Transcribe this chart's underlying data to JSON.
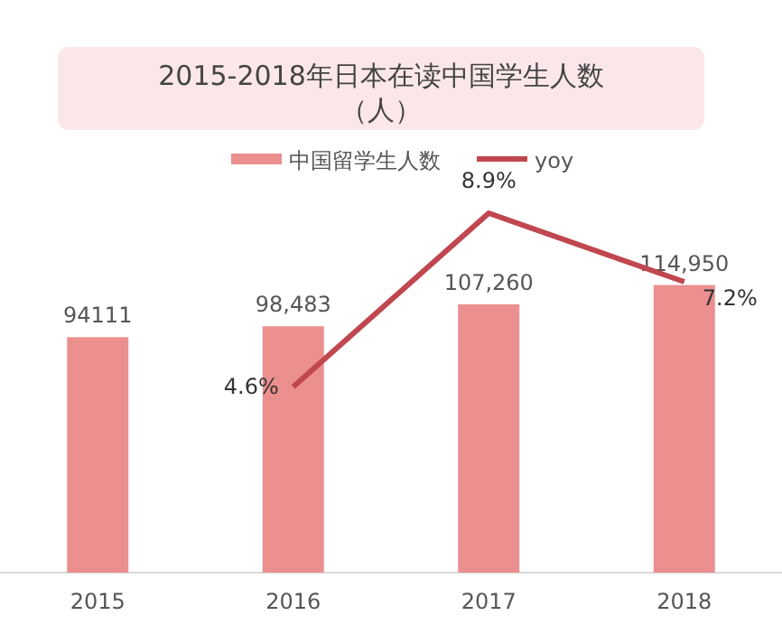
{
  "chart_data": {
    "type": "bar",
    "title": "2015-2018年日本在读中国学生人数（人）",
    "categories": [
      "2015",
      "2016",
      "2017",
      "2018"
    ],
    "legend": "top",
    "series": [
      {
        "name": "中国留学生人数",
        "color": "#ec8f8f",
        "values": [
          94111,
          98483,
          107260,
          114950
        ],
        "value_labels": [
          "94111",
          "98,483",
          "107,260",
          "114,950"
        ]
      },
      {
        "name": "yoy",
        "type": "line",
        "axis": "y2",
        "color": "#c0474f",
        "values": [
          null,
          4.6,
          8.9,
          7.2
        ],
        "value_labels": [
          null,
          "4.6%",
          "8.9%",
          "7.2%"
        ]
      }
    ]
  }
}
